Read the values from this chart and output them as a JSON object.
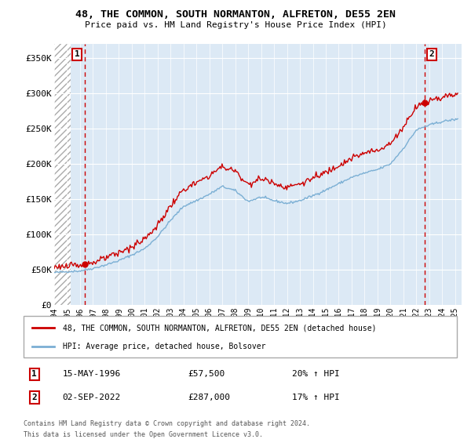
{
  "title": "48, THE COMMON, SOUTH NORMANTON, ALFRETON, DE55 2EN",
  "subtitle": "Price paid vs. HM Land Registry's House Price Index (HPI)",
  "ylabel_ticks": [
    "£0",
    "£50K",
    "£100K",
    "£150K",
    "£200K",
    "£250K",
    "£300K",
    "£350K"
  ],
  "ytick_values": [
    0,
    50000,
    100000,
    150000,
    200000,
    250000,
    300000,
    350000
  ],
  "ylim": [
    0,
    370000
  ],
  "xlim_start": 1994.0,
  "xlim_end": 2025.5,
  "xticks": [
    1994,
    1995,
    1996,
    1997,
    1998,
    1999,
    2000,
    2001,
    2002,
    2003,
    2004,
    2005,
    2006,
    2007,
    2008,
    2009,
    2010,
    2011,
    2012,
    2013,
    2014,
    2015,
    2016,
    2017,
    2018,
    2019,
    2020,
    2021,
    2022,
    2023,
    2024,
    2025
  ],
  "sale1_date": 1996.37,
  "sale1_price": 57500,
  "sale1_label": "1",
  "sale2_date": 2022.67,
  "sale2_price": 287000,
  "sale2_label": "2",
  "line_color_property": "#cc0000",
  "line_color_hpi": "#7bafd4",
  "legend_property": "48, THE COMMON, SOUTH NORMANTON, ALFRETON, DE55 2EN (detached house)",
  "legend_hpi": "HPI: Average price, detached house, Bolsover",
  "sale1_date_str": "15-MAY-1996",
  "sale1_price_str": "£57,500",
  "sale1_hpi_str": "20% ↑ HPI",
  "sale2_date_str": "02-SEP-2022",
  "sale2_price_str": "£287,000",
  "sale2_hpi_str": "17% ↑ HPI",
  "footer1": "Contains HM Land Registry data © Crown copyright and database right 2024.",
  "footer2": "This data is licensed under the Open Government Licence v3.0.",
  "bg_plot_color": "#dce9f5",
  "hatch_color": "#c8c8c8",
  "grid_color": "#ffffff"
}
